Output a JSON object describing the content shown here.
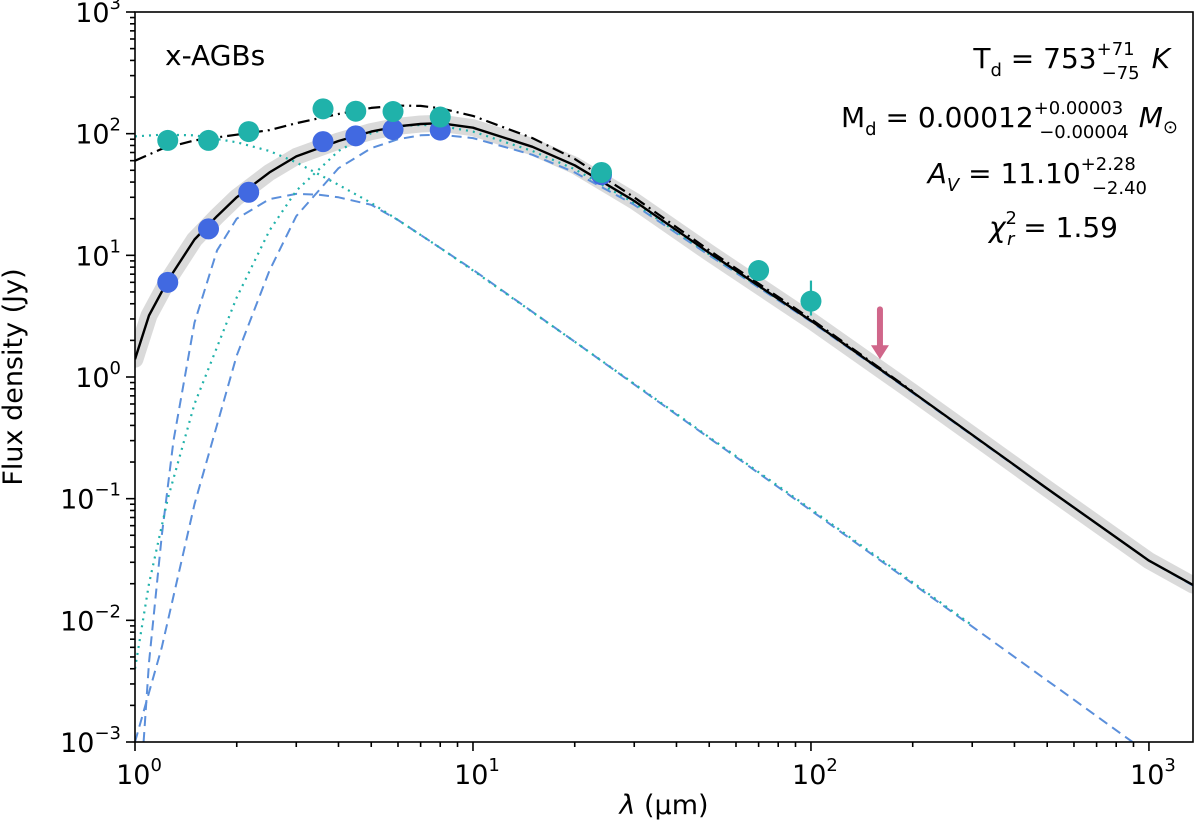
{
  "chart_data": {
    "type": "line",
    "panel_label": "x-AGBs",
    "xlabel_symbol": "λ",
    "xlabel_unit": " (µm)",
    "ylabel": "Flux density (Jy)",
    "xscale": "log",
    "yscale": "log",
    "xlim": [
      1,
      1350
    ],
    "ylim": [
      0.001,
      1000
    ],
    "x_ticks": [
      {
        "value": 1,
        "base": "10",
        "exp": "0"
      },
      {
        "value": 10,
        "base": "10",
        "exp": "1"
      },
      {
        "value": 100,
        "base": "10",
        "exp": "2"
      },
      {
        "value": 1000,
        "base": "10",
        "exp": "3"
      }
    ],
    "y_ticks": [
      {
        "value": 0.001,
        "base": "10",
        "exp": "−3"
      },
      {
        "value": 0.01,
        "base": "10",
        "exp": "−2"
      },
      {
        "value": 0.1,
        "base": "10",
        "exp": "−1"
      },
      {
        "value": 1,
        "base": "10",
        "exp": "0"
      },
      {
        "value": 10,
        "base": "10",
        "exp": "1"
      },
      {
        "value": 100,
        "base": "10",
        "exp": "2"
      },
      {
        "value": 1000,
        "base": "10",
        "exp": "3"
      }
    ],
    "colors": {
      "dereddened": "#20b2aa",
      "observed": "#4169e1",
      "component": "#5b8fdb",
      "model": "#000000",
      "band": "#d3d3d3",
      "upper_limit": "#d0668a"
    },
    "annotations": {
      "td": {
        "lhs": "T",
        "sub": "d",
        "eq": " = 753",
        "sup": "+71",
        "low": "−75",
        "unit": "K"
      },
      "md": {
        "lhs": "M",
        "sub": "d",
        "eq": " = 0.00012",
        "sup": "+0.00003",
        "low": "−0.00004",
        "unit": "M",
        "unit_sub": "⊙"
      },
      "av": {
        "lhs": "A",
        "sub": "V",
        "eq": " = 11.10",
        "sup": "+2.28",
        "low": "−2.40"
      },
      "chi": {
        "lhs": "χ",
        "sup": "2",
        "sub": "r",
        "eq": " = 1.59"
      }
    },
    "series": [
      {
        "name": "Dereddened photometry",
        "style": "markers",
        "x": [
          1.25,
          1.65,
          2.17,
          3.6,
          4.5,
          5.8,
          8.0,
          24,
          70,
          100
        ],
        "y": [
          88,
          88,
          104,
          160,
          153,
          152,
          137,
          48,
          7.5,
          4.2
        ],
        "yerr": [
          0,
          0,
          0,
          0,
          0,
          0,
          0,
          0,
          0,
          1.0
        ]
      },
      {
        "name": "Observed photometry",
        "style": "markers",
        "x": [
          1.25,
          1.65,
          2.17,
          3.6,
          4.5,
          5.8,
          8.0,
          24
        ],
        "y": [
          6.0,
          16.5,
          33,
          86,
          96,
          108,
          107,
          46
        ]
      },
      {
        "name": "Upper limit",
        "style": "arrow",
        "x": [
          160
        ],
        "y": [
          3.6
        ],
        "y_arrow_end": [
          1.4
        ]
      },
      {
        "name": "Total model (reddened)",
        "style": "solid",
        "x": [
          1.0,
          1.1,
          1.25,
          1.5,
          1.75,
          2.0,
          2.5,
          3.0,
          4.0,
          5.0,
          6.0,
          7.0,
          8.0,
          10,
          15,
          20,
          30,
          50,
          100,
          200,
          500,
          1000,
          1350
        ],
        "y": [
          1.4,
          3.2,
          6.2,
          13.5,
          21,
          30,
          48,
          65,
          87,
          104,
          115,
          120,
          122,
          112,
          78,
          55,
          28,
          10.5,
          2.9,
          0.75,
          0.121,
          0.031,
          0.0195
        ]
      },
      {
        "name": "Total model (dereddened)",
        "style": "dashdot",
        "x": [
          1.0,
          1.2,
          1.5,
          2.0,
          2.5,
          3.0,
          4.0,
          5.0,
          6.0,
          7.0,
          8.0,
          10,
          15,
          20,
          30,
          50,
          100,
          200
        ],
        "y": [
          60,
          75,
          88,
          98,
          107,
          122,
          145,
          163,
          170,
          169,
          162,
          140,
          92,
          62,
          30,
          11,
          3.0,
          0.76
        ]
      },
      {
        "name": "Stellar component (dereddened)",
        "style": "dotted",
        "x": [
          1.0,
          1.2,
          1.5,
          2.0,
          2.5,
          3.0,
          4.0,
          5.0,
          6.0,
          8.0,
          10,
          20,
          30,
          50,
          100,
          200,
          300
        ],
        "y": [
          95,
          98,
          97,
          85,
          72,
          58,
          38,
          27,
          19.5,
          11.5,
          7.5,
          1.95,
          0.88,
          0.32,
          0.082,
          0.0205,
          0.0091
        ]
      },
      {
        "name": "Dust component (dereddened)",
        "style": "dotted",
        "x": [
          1.0,
          1.1,
          1.25,
          1.5,
          2.0,
          2.5,
          3.0,
          4.0,
          5.0,
          6.0,
          7.0,
          8.0,
          10,
          15,
          20,
          30,
          50,
          100,
          200,
          500,
          1000,
          1350
        ],
        "y": [
          0.004,
          0.02,
          0.1,
          0.6,
          4.5,
          16,
          34,
          72,
          101,
          115,
          118,
          116,
          104,
          72,
          51,
          27,
          10.2,
          2.9,
          0.75,
          0.121,
          0.031,
          0.0195
        ]
      },
      {
        "name": "Stellar component (reddened)",
        "style": "dashed",
        "x": [
          1.06,
          1.1,
          1.2,
          1.3,
          1.5,
          1.75,
          2.0,
          2.5,
          3.0,
          3.5,
          4.0,
          5.0,
          6.0,
          8.0,
          10,
          20,
          30,
          50,
          100,
          200,
          500,
          1000,
          1300
        ],
        "y": [
          0.001,
          0.0045,
          0.05,
          0.3,
          2.8,
          11,
          20,
          29,
          32,
          31.5,
          30,
          26,
          19.5,
          11.5,
          7.6,
          1.95,
          0.87,
          0.315,
          0.08,
          0.02,
          0.0032,
          0.0008,
          0.00049
        ]
      },
      {
        "name": "Dust component (reddened)",
        "style": "dashed",
        "x": [
          1.0,
          1.2,
          1.5,
          2.0,
          2.5,
          3.0,
          4.0,
          5.0,
          6.0,
          7.0,
          8.0,
          10,
          15,
          20,
          30,
          50,
          100,
          200,
          500,
          1000,
          1350
        ],
        "y": [
          0.001,
          0.006,
          0.09,
          1.5,
          7.5,
          21,
          52,
          76,
          90,
          97,
          98,
          92,
          67,
          48,
          26,
          10,
          2.85,
          0.74,
          0.12,
          0.031,
          0.0193
        ]
      }
    ]
  }
}
